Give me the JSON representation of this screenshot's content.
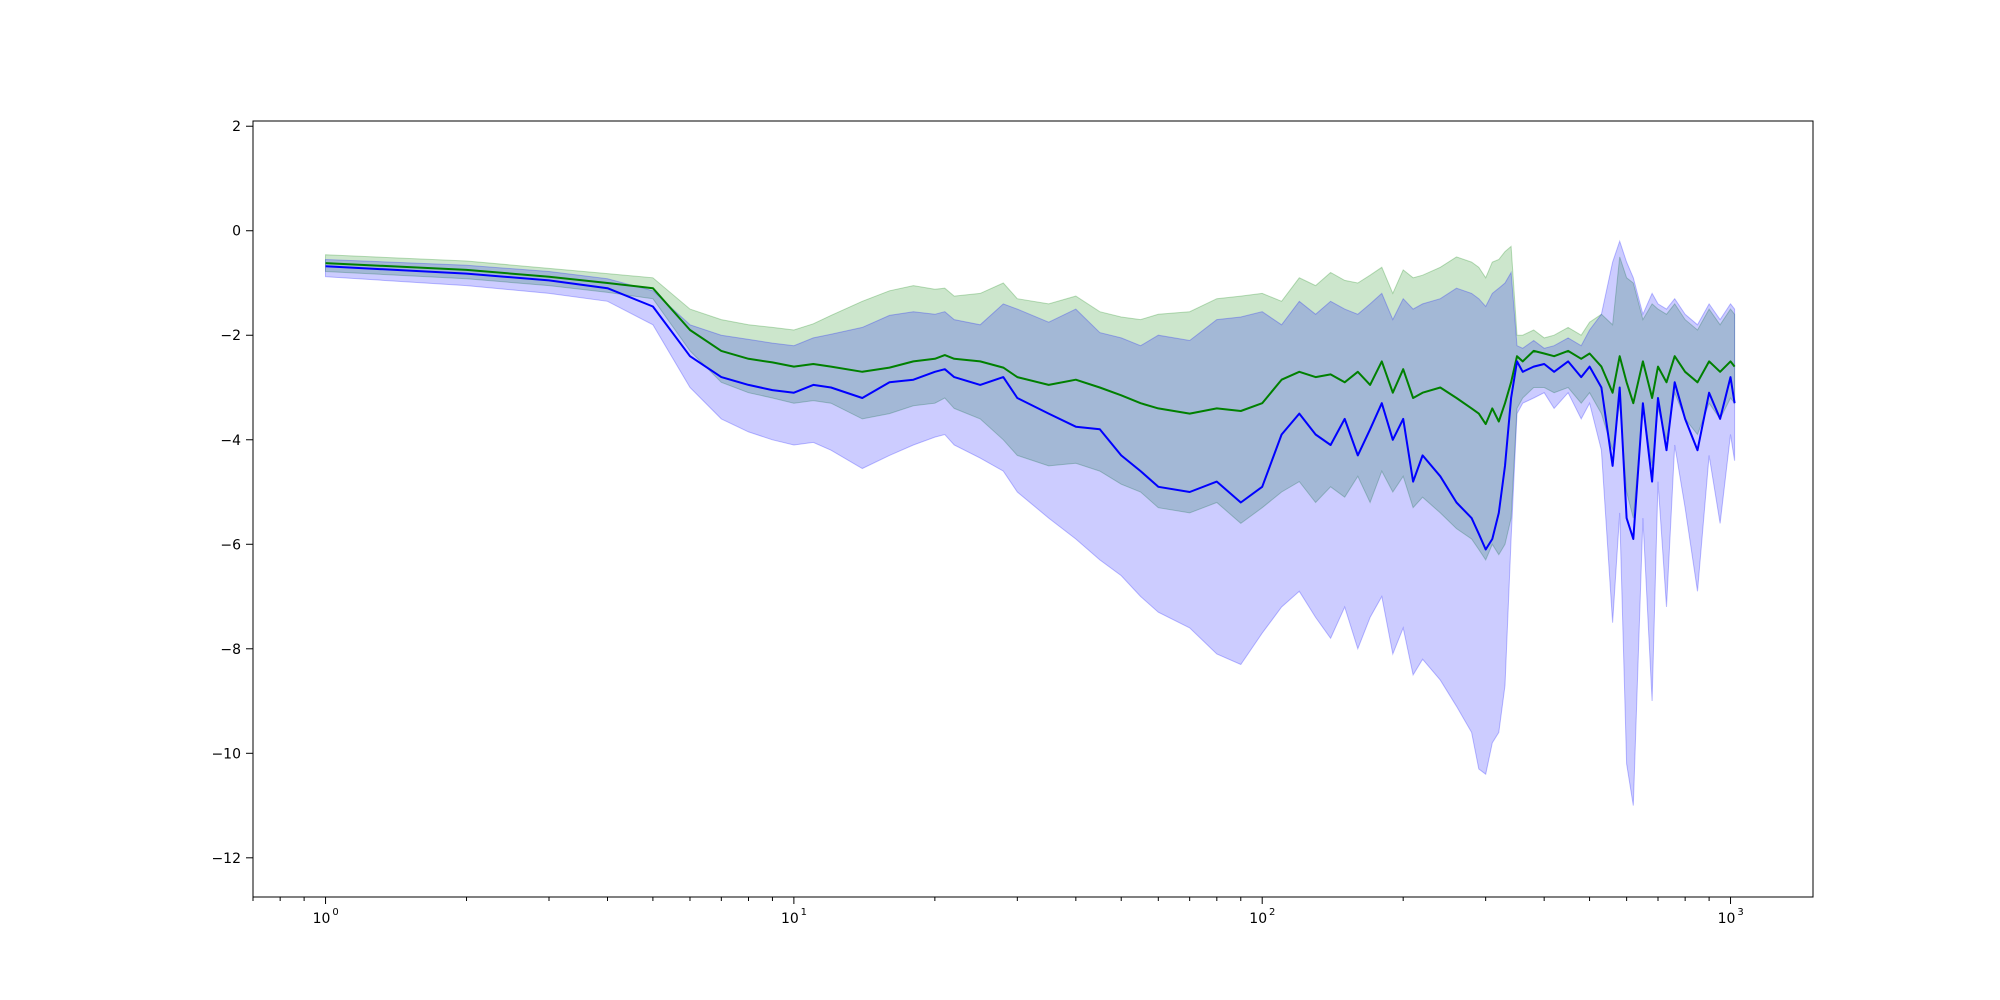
{
  "chart_data": {
    "type": "line",
    "title": "",
    "xlabel": "",
    "ylabel": "",
    "x_scale": "log",
    "xlim": [
      0.7,
      1500
    ],
    "ylim": [
      -12.75,
      2.1
    ],
    "grid": false,
    "legend": "none",
    "x_ticks": [
      {
        "base": "10",
        "exp": "0",
        "value": 1
      },
      {
        "base": "10",
        "exp": "1",
        "value": 10
      },
      {
        "base": "10",
        "exp": "2",
        "value": 100
      },
      {
        "base": "10",
        "exp": "3",
        "value": 1000
      }
    ],
    "y_ticks": [
      {
        "label": "2",
        "value": 2
      },
      {
        "label": "0",
        "value": 0
      },
      {
        "label": "−2",
        "value": -2
      },
      {
        "label": "−4",
        "value": -4
      },
      {
        "label": "−6",
        "value": -6
      },
      {
        "label": "−8",
        "value": -8
      },
      {
        "label": "−10",
        "value": -10
      },
      {
        "label": "−12",
        "value": -12
      }
    ],
    "series": [
      {
        "color": "#008000",
        "band_color": "#008000",
        "band_alpha": 0.2,
        "x": [
          1,
          2,
          3,
          4,
          5,
          6,
          7,
          8,
          9,
          10,
          11,
          12,
          14,
          16,
          18,
          20,
          21,
          22,
          25,
          28,
          30,
          35,
          40,
          45,
          50,
          55,
          60,
          70,
          80,
          90,
          100,
          110,
          120,
          130,
          140,
          150,
          160,
          170,
          180,
          190,
          200,
          210,
          220,
          240,
          260,
          280,
          290,
          300,
          310,
          320,
          330,
          340,
          350,
          360,
          380,
          400,
          420,
          450,
          480,
          500,
          530,
          560,
          580,
          600,
          620,
          650,
          680,
          700,
          730,
          760,
          800,
          850,
          900,
          950,
          1000,
          1020
        ],
        "y": [
          -0.62,
          -0.75,
          -0.88,
          -1.0,
          -1.1,
          -1.9,
          -2.3,
          -2.45,
          -2.52,
          -2.6,
          -2.55,
          -2.6,
          -2.7,
          -2.62,
          -2.5,
          -2.45,
          -2.38,
          -2.45,
          -2.5,
          -2.62,
          -2.8,
          -2.95,
          -2.85,
          -3.0,
          -3.15,
          -3.3,
          -3.4,
          -3.5,
          -3.4,
          -3.45,
          -3.3,
          -2.85,
          -2.7,
          -2.8,
          -2.75,
          -2.9,
          -2.7,
          -2.95,
          -2.5,
          -3.1,
          -2.65,
          -3.2,
          -3.1,
          -3.0,
          -3.2,
          -3.4,
          -3.5,
          -3.7,
          -3.4,
          -3.65,
          -3.3,
          -2.9,
          -2.4,
          -2.5,
          -2.3,
          -2.35,
          -2.4,
          -2.3,
          -2.45,
          -2.35,
          -2.6,
          -3.1,
          -2.4,
          -2.9,
          -3.3,
          -2.5,
          -3.2,
          -2.6,
          -2.9,
          -2.4,
          -2.7,
          -2.9,
          -2.5,
          -2.7,
          -2.5,
          -2.6
        ],
        "lower": [
          -0.78,
          -0.92,
          -1.05,
          -1.18,
          -1.3,
          -2.3,
          -2.9,
          -3.1,
          -3.2,
          -3.3,
          -3.25,
          -3.3,
          -3.6,
          -3.5,
          -3.35,
          -3.3,
          -3.2,
          -3.4,
          -3.6,
          -4.0,
          -4.3,
          -4.5,
          -4.45,
          -4.6,
          -4.85,
          -5.0,
          -5.3,
          -5.4,
          -5.2,
          -5.6,
          -5.3,
          -5.0,
          -4.8,
          -5.2,
          -4.9,
          -5.1,
          -4.7,
          -5.2,
          -4.6,
          -5.0,
          -4.7,
          -5.3,
          -5.1,
          -5.4,
          -5.7,
          -5.9,
          -6.1,
          -6.3,
          -6.0,
          -6.2,
          -6.0,
          -5.5,
          -3.4,
          -3.2,
          -3.0,
          -3.0,
          -3.1,
          -3.0,
          -3.3,
          -3.1,
          -3.5,
          -4.2,
          -3.3,
          -5.0,
          -5.5,
          -3.4,
          -4.5,
          -3.4,
          -4.0,
          -3.1,
          -3.6,
          -3.9,
          -3.3,
          -3.6,
          -3.2,
          -3.3
        ],
        "upper": [
          -0.46,
          -0.58,
          -0.72,
          -0.82,
          -0.9,
          -1.5,
          -1.7,
          -1.8,
          -1.85,
          -1.9,
          -1.78,
          -1.62,
          -1.35,
          -1.15,
          -1.05,
          -1.12,
          -1.1,
          -1.25,
          -1.2,
          -1.0,
          -1.3,
          -1.4,
          -1.25,
          -1.55,
          -1.65,
          -1.7,
          -1.6,
          -1.55,
          -1.3,
          -1.25,
          -1.2,
          -1.35,
          -0.9,
          -1.05,
          -0.8,
          -0.95,
          -1.0,
          -0.85,
          -0.7,
          -1.2,
          -0.75,
          -0.9,
          -0.85,
          -0.7,
          -0.5,
          -0.6,
          -0.7,
          -0.9,
          -0.6,
          -0.55,
          -0.4,
          -0.3,
          -2.0,
          -2.0,
          -1.9,
          -2.05,
          -2.0,
          -1.85,
          -2.0,
          -1.75,
          -1.6,
          -1.8,
          -0.5,
          -0.9,
          -1.0,
          -1.7,
          -1.4,
          -1.5,
          -1.6,
          -1.4,
          -1.7,
          -1.9,
          -1.5,
          -1.8,
          -1.5,
          -1.6
        ]
      },
      {
        "color": "#0000ff",
        "band_color": "#0000ff",
        "band_alpha": 0.2,
        "x": [
          1,
          2,
          3,
          4,
          5,
          6,
          7,
          8,
          9,
          10,
          11,
          12,
          14,
          16,
          18,
          20,
          21,
          22,
          25,
          28,
          30,
          35,
          40,
          45,
          50,
          55,
          60,
          70,
          80,
          90,
          100,
          110,
          120,
          130,
          140,
          150,
          160,
          170,
          180,
          190,
          200,
          210,
          220,
          240,
          260,
          280,
          290,
          300,
          310,
          320,
          330,
          340,
          350,
          360,
          380,
          400,
          420,
          450,
          480,
          500,
          530,
          560,
          580,
          600,
          620,
          650,
          680,
          700,
          730,
          760,
          800,
          850,
          900,
          950,
          1000,
          1020
        ],
        "y": [
          -0.68,
          -0.82,
          -0.95,
          -1.1,
          -1.45,
          -2.4,
          -2.8,
          -2.95,
          -3.05,
          -3.1,
          -2.95,
          -3.0,
          -3.2,
          -2.9,
          -2.85,
          -2.7,
          -2.65,
          -2.8,
          -2.95,
          -2.8,
          -3.2,
          -3.5,
          -3.75,
          -3.8,
          -4.3,
          -4.6,
          -4.9,
          -5.0,
          -4.8,
          -5.2,
          -4.9,
          -3.9,
          -3.5,
          -3.9,
          -4.1,
          -3.6,
          -4.3,
          -3.8,
          -3.3,
          -4.0,
          -3.6,
          -4.8,
          -4.3,
          -4.7,
          -5.2,
          -5.5,
          -5.8,
          -6.1,
          -5.9,
          -5.4,
          -4.5,
          -3.2,
          -2.5,
          -2.7,
          -2.6,
          -2.55,
          -2.7,
          -2.5,
          -2.8,
          -2.6,
          -3.0,
          -4.5,
          -3.0,
          -5.5,
          -5.9,
          -3.3,
          -4.8,
          -3.2,
          -4.2,
          -2.9,
          -3.6,
          -4.2,
          -3.1,
          -3.6,
          -2.8,
          -3.3
        ],
        "lower": [
          -0.88,
          -1.05,
          -1.2,
          -1.35,
          -1.8,
          -3.0,
          -3.6,
          -3.85,
          -4.0,
          -4.1,
          -4.05,
          -4.2,
          -4.55,
          -4.3,
          -4.1,
          -3.95,
          -3.9,
          -4.1,
          -4.35,
          -4.6,
          -5.0,
          -5.5,
          -5.9,
          -6.3,
          -6.6,
          -7.0,
          -7.3,
          -7.6,
          -8.1,
          -8.3,
          -7.7,
          -7.2,
          -6.9,
          -7.4,
          -7.8,
          -7.2,
          -8.0,
          -7.4,
          -7.0,
          -8.1,
          -7.6,
          -8.5,
          -8.2,
          -8.6,
          -9.1,
          -9.6,
          -10.3,
          -10.4,
          -9.8,
          -9.6,
          -8.7,
          -5.9,
          -3.5,
          -3.3,
          -3.2,
          -3.1,
          -3.4,
          -3.1,
          -3.6,
          -3.3,
          -4.2,
          -7.5,
          -5.4,
          -10.2,
          -11.0,
          -5.5,
          -9.0,
          -4.8,
          -7.2,
          -4.1,
          -5.3,
          -6.9,
          -4.3,
          -5.6,
          -3.9,
          -4.4
        ],
        "upper": [
          -0.55,
          -0.66,
          -0.78,
          -0.92,
          -1.15,
          -1.8,
          -2.0,
          -2.08,
          -2.15,
          -2.2,
          -2.05,
          -1.98,
          -1.85,
          -1.62,
          -1.55,
          -1.6,
          -1.55,
          -1.7,
          -1.8,
          -1.4,
          -1.5,
          -1.75,
          -1.5,
          -1.95,
          -2.05,
          -2.2,
          -2.0,
          -2.1,
          -1.7,
          -1.65,
          -1.55,
          -1.8,
          -1.35,
          -1.6,
          -1.35,
          -1.5,
          -1.6,
          -1.4,
          -1.2,
          -1.7,
          -1.3,
          -1.5,
          -1.4,
          -1.3,
          -1.1,
          -1.2,
          -1.3,
          -1.45,
          -1.2,
          -1.1,
          -1.0,
          -0.8,
          -2.2,
          -2.25,
          -2.1,
          -2.25,
          -2.2,
          -2.05,
          -2.2,
          -1.9,
          -1.6,
          -0.6,
          -0.2,
          -0.6,
          -0.9,
          -1.6,
          -1.2,
          -1.4,
          -1.5,
          -1.3,
          -1.6,
          -1.8,
          -1.4,
          -1.7,
          -1.4,
          -1.5
        ]
      }
    ]
  }
}
